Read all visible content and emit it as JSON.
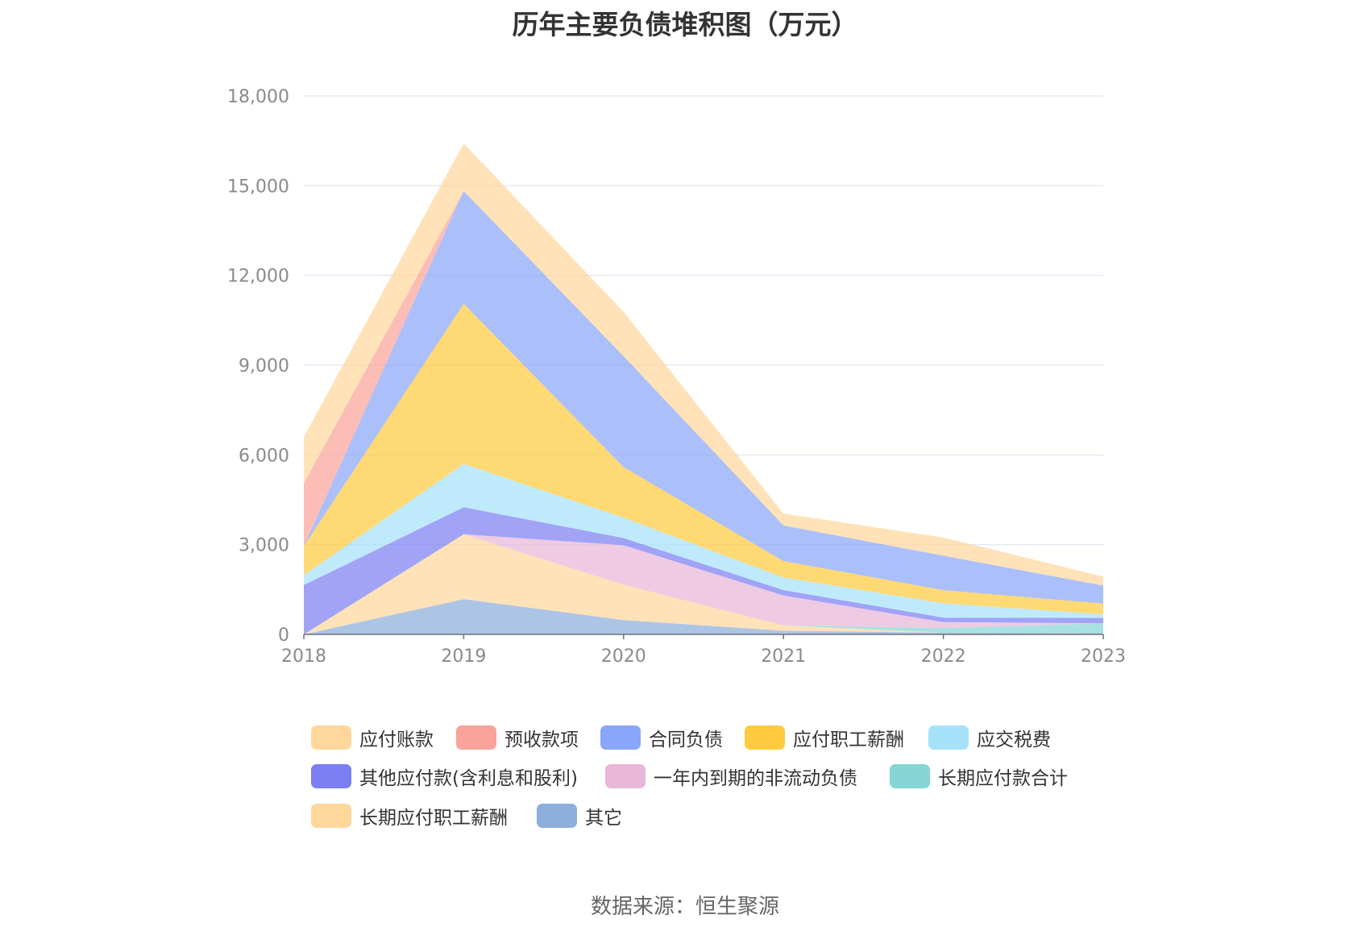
{
  "chart_data": {
    "type": "area",
    "title": "历年主要负债堆积图（万元）",
    "x": [
      "2018",
      "2019",
      "2020",
      "2021",
      "2022",
      "2023"
    ],
    "ylim": [
      0,
      18000
    ],
    "yticks": [
      "0",
      "3,000",
      "6,000",
      "9,000",
      "12,000",
      "15,000",
      "18,000"
    ],
    "ytick_values": [
      0,
      3000,
      6000,
      9000,
      12000,
      15000,
      18000
    ],
    "grid": true,
    "legend_position": "bottom",
    "stacked": true,
    "series": [
      {
        "name": "其它",
        "color": "#8eaedb",
        "values": [
          0,
          1180,
          480,
          120,
          60,
          40
        ]
      },
      {
        "name": "长期应付职工薪酬",
        "color": "#ffd79c",
        "values": [
          0,
          2170,
          1180,
          180,
          0,
          0
        ]
      },
      {
        "name": "长期应付款合计",
        "color": "#86d6d6",
        "values": [
          0,
          0,
          0,
          0,
          150,
          330
        ]
      },
      {
        "name": "一年内到期的非流动负债",
        "color": "#e8b7d8",
        "values": [
          0,
          0,
          1320,
          1000,
          200,
          0
        ]
      },
      {
        "name": "其他应付款(含利息和股利)",
        "color": "#7b7ff2",
        "values": [
          1650,
          900,
          240,
          180,
          150,
          180
        ]
      },
      {
        "name": "应交税费",
        "color": "#a6e2fa",
        "values": [
          330,
          1450,
          680,
          420,
          480,
          120
        ]
      },
      {
        "name": "应付职工薪酬",
        "color": "#ffca3f",
        "values": [
          970,
          5350,
          1690,
          550,
          440,
          360
        ]
      },
      {
        "name": "合同负债",
        "color": "#8aa6fa",
        "values": [
          0,
          3770,
          3710,
          1190,
          1150,
          600
        ]
      },
      {
        "name": "预收款项",
        "color": "#f9a39a",
        "values": [
          2100,
          0,
          0,
          0,
          0,
          0
        ]
      },
      {
        "name": "应付账款",
        "color": "#ffd79c",
        "values": [
          1550,
          1590,
          1480,
          400,
          610,
          300
        ]
      }
    ]
  },
  "legend": [
    {
      "name": "应付账款",
      "color": "#ffd79c"
    },
    {
      "name": "预收款项",
      "color": "#f9a39a"
    },
    {
      "name": "合同负债",
      "color": "#8aa6fa"
    },
    {
      "name": "应付职工薪酬",
      "color": "#ffca3f"
    },
    {
      "name": "应交税费",
      "color": "#a6e2fa"
    },
    {
      "name": "其他应付款(含利息和股利)",
      "color": "#7b7ff2"
    },
    {
      "name": "一年内到期的非流动负债",
      "color": "#e8b7d8"
    },
    {
      "name": "长期应付款合计",
      "color": "#86d6d6"
    },
    {
      "name": "长期应付职工薪酬",
      "color": "#ffd79c"
    },
    {
      "name": "其它",
      "color": "#8eaedb"
    }
  ],
  "source": "数据来源：恒生聚源"
}
